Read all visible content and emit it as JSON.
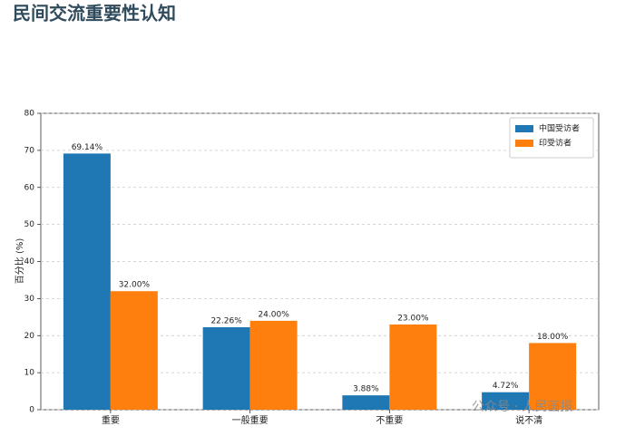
{
  "chart_data": {
    "type": "bar",
    "title": "民间交流重要性认知",
    "y_label": "百分比 (%)",
    "categories": [
      "重要",
      "一般重要",
      "不重要",
      "说不清"
    ],
    "series": [
      {
        "name": "中国受访者",
        "color": "#1f77b4",
        "values": [
          69.14,
          22.26,
          3.88,
          4.72
        ],
        "value_labels": [
          "69.14%",
          "22.26%",
          "3.88%",
          "4.72%"
        ]
      },
      {
        "name": "印受访者",
        "color": "#ff7f0e",
        "values": [
          32.0,
          24.0,
          23.0,
          18.0
        ],
        "value_labels": [
          "32.00%",
          "24.00%",
          "23.00%",
          "18.00%"
        ]
      }
    ],
    "ylim": [
      0,
      80
    ],
    "yticks": [
      0,
      10,
      20,
      30,
      40,
      50,
      60,
      70,
      80
    ],
    "grid": true,
    "legend": "upper right",
    "watermark": "公众号 · 人民画报"
  }
}
